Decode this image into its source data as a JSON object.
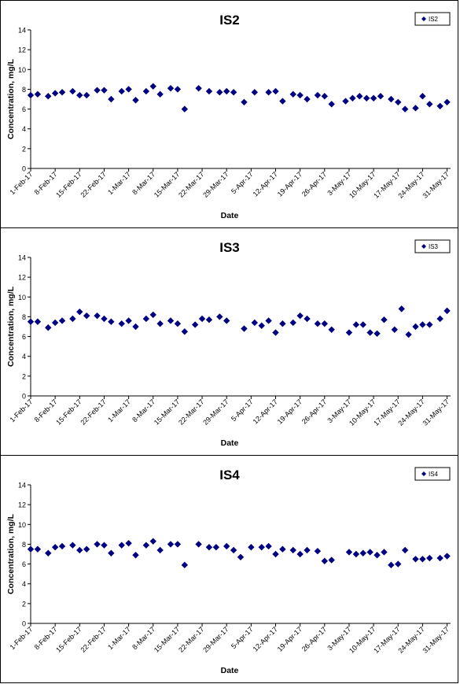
{
  "colors": {
    "marker": "#000080",
    "axis": "#000000"
  },
  "chart_data": [
    {
      "type": "scatter",
      "title": "IS2",
      "xlabel": "Date",
      "ylabel": "Concentration, mg/L",
      "ylim": [
        0,
        14
      ],
      "yticks": [
        "0",
        "2",
        "4",
        "6",
        "8",
        "10",
        "12",
        "14"
      ],
      "xlim": [
        "2017-02-01",
        "2017-06-01"
      ],
      "xtick_labels": [
        "1-Feb-17",
        "8-Feb-17",
        "15-Feb-17",
        "22-Feb-17",
        "1-Mar-17",
        "8-Mar-17",
        "15-Mar-17",
        "22-Mar-17",
        "29-Mar-17",
        "5-Apr-17",
        "12-Apr-17",
        "19-Apr-17",
        "26-Apr-17",
        "3-May-17",
        "10-May-17",
        "17-May-17",
        "24-May-17",
        "31-May-17"
      ],
      "legend": {
        "position": "top-right"
      },
      "series": [
        {
          "name": "IS2",
          "x": [
            "2017-02-01",
            "2017-02-03",
            "2017-02-06",
            "2017-02-08",
            "2017-02-10",
            "2017-02-13",
            "2017-02-15",
            "2017-02-17",
            "2017-02-20",
            "2017-02-22",
            "2017-02-24",
            "2017-02-27",
            "2017-03-01",
            "2017-03-03",
            "2017-03-06",
            "2017-03-08",
            "2017-03-10",
            "2017-03-13",
            "2017-03-15",
            "2017-03-17",
            "2017-03-21",
            "2017-03-24",
            "2017-03-27",
            "2017-03-29",
            "2017-03-31",
            "2017-04-03",
            "2017-04-06",
            "2017-04-10",
            "2017-04-12",
            "2017-04-14",
            "2017-04-17",
            "2017-04-19",
            "2017-04-21",
            "2017-04-24",
            "2017-04-26",
            "2017-04-28",
            "2017-05-02",
            "2017-05-04",
            "2017-05-06",
            "2017-05-08",
            "2017-05-10",
            "2017-05-12",
            "2017-05-15",
            "2017-05-17",
            "2017-05-19",
            "2017-05-22",
            "2017-05-24",
            "2017-05-26",
            "2017-05-29",
            "2017-05-31"
          ],
          "y": [
            7.4,
            7.5,
            7.3,
            7.6,
            7.7,
            7.8,
            7.4,
            7.4,
            7.9,
            7.9,
            7.0,
            7.8,
            8.0,
            6.9,
            7.8,
            8.3,
            7.5,
            8.1,
            8.0,
            6.0,
            8.1,
            7.8,
            7.7,
            7.8,
            7.7,
            6.7,
            7.7,
            7.7,
            7.8,
            6.8,
            7.5,
            7.4,
            7.0,
            7.4,
            7.3,
            6.5,
            6.8,
            7.1,
            7.3,
            7.1,
            7.1,
            7.3,
            7.0,
            6.7,
            6.0,
            6.1,
            7.3,
            6.5,
            6.3,
            6.7
          ]
        }
      ]
    },
    {
      "type": "scatter",
      "title": "IS3",
      "xlabel": "Date",
      "ylabel": "Concentration, mg/L",
      "ylim": [
        0,
        14
      ],
      "yticks": [
        "0",
        "2",
        "4",
        "6",
        "8",
        "10",
        "12",
        "14"
      ],
      "xlim": [
        "2017-02-01",
        "2017-06-01"
      ],
      "xtick_labels": [
        "1-Feb-17",
        "8-Feb-17",
        "15-Feb-17",
        "22-Feb-17",
        "1-Mar-17",
        "8-Mar-17",
        "15-Mar-17",
        "22-Mar-17",
        "29-Mar-17",
        "5-Apr-17",
        "12-Apr-17",
        "19-Apr-17",
        "26-Apr-17",
        "3-May-17",
        "10-May-17",
        "17-May-17",
        "24-May-17",
        "31-May-17"
      ],
      "legend": {
        "position": "top-right"
      },
      "series": [
        {
          "name": "IS3",
          "x": [
            "2017-02-01",
            "2017-02-03",
            "2017-02-06",
            "2017-02-08",
            "2017-02-10",
            "2017-02-13",
            "2017-02-15",
            "2017-02-17",
            "2017-02-20",
            "2017-02-22",
            "2017-02-24",
            "2017-02-27",
            "2017-03-01",
            "2017-03-03",
            "2017-03-06",
            "2017-03-08",
            "2017-03-10",
            "2017-03-13",
            "2017-03-15",
            "2017-03-17",
            "2017-03-20",
            "2017-03-22",
            "2017-03-24",
            "2017-03-27",
            "2017-03-29",
            "2017-04-03",
            "2017-04-06",
            "2017-04-08",
            "2017-04-10",
            "2017-04-12",
            "2017-04-14",
            "2017-04-17",
            "2017-04-19",
            "2017-04-21",
            "2017-04-24",
            "2017-04-26",
            "2017-04-28",
            "2017-05-03",
            "2017-05-05",
            "2017-05-07",
            "2017-05-09",
            "2017-05-11",
            "2017-05-13",
            "2017-05-16",
            "2017-05-18",
            "2017-05-20",
            "2017-05-22",
            "2017-05-24",
            "2017-05-26",
            "2017-05-29",
            "2017-05-31"
          ],
          "y": [
            7.5,
            7.5,
            6.9,
            7.4,
            7.6,
            7.8,
            8.5,
            8.1,
            8.1,
            7.8,
            7.5,
            7.3,
            7.6,
            7.0,
            7.8,
            8.2,
            7.3,
            7.6,
            7.3,
            6.5,
            7.2,
            7.8,
            7.7,
            8.0,
            7.6,
            6.8,
            7.4,
            7.1,
            7.6,
            6.4,
            7.3,
            7.4,
            8.1,
            7.8,
            7.3,
            7.3,
            6.7,
            6.4,
            7.2,
            7.2,
            6.4,
            6.3,
            7.7,
            6.7,
            8.8,
            6.2,
            7.0,
            7.2,
            7.2,
            7.8,
            8.6
          ]
        }
      ]
    },
    {
      "type": "scatter",
      "title": "IS4",
      "xlabel": "Date",
      "ylabel": "Concentration, mg/L",
      "ylim": [
        0,
        14
      ],
      "yticks": [
        "0",
        "2",
        "4",
        "6",
        "8",
        "10",
        "12",
        "14"
      ],
      "xlim": [
        "2017-02-01",
        "2017-06-01"
      ],
      "xtick_labels": [
        "1-Feb-17",
        "8-Feb-17",
        "15-Feb-17",
        "22-Feb-17",
        "1-Mar-17",
        "8-Mar-17",
        "15-Mar-17",
        "22-Mar-17",
        "29-Mar-17",
        "5-Apr-17",
        "12-Apr-17",
        "19-Apr-17",
        "26-Apr-17",
        "3-May-17",
        "10-May-17",
        "17-May-17",
        "24-May-17",
        "31-May-17"
      ],
      "legend": {
        "position": "top-right"
      },
      "series": [
        {
          "name": "IS4",
          "x": [
            "2017-02-01",
            "2017-02-03",
            "2017-02-06",
            "2017-02-08",
            "2017-02-10",
            "2017-02-13",
            "2017-02-15",
            "2017-02-17",
            "2017-02-20",
            "2017-02-22",
            "2017-02-24",
            "2017-02-27",
            "2017-03-01",
            "2017-03-03",
            "2017-03-06",
            "2017-03-08",
            "2017-03-10",
            "2017-03-13",
            "2017-03-15",
            "2017-03-17",
            "2017-03-21",
            "2017-03-24",
            "2017-03-26",
            "2017-03-29",
            "2017-03-31",
            "2017-04-02",
            "2017-04-05",
            "2017-04-08",
            "2017-04-10",
            "2017-04-12",
            "2017-04-14",
            "2017-04-17",
            "2017-04-19",
            "2017-04-21",
            "2017-04-24",
            "2017-04-26",
            "2017-04-28",
            "2017-05-03",
            "2017-05-05",
            "2017-05-07",
            "2017-05-09",
            "2017-05-11",
            "2017-05-13",
            "2017-05-15",
            "2017-05-17",
            "2017-05-19",
            "2017-05-22",
            "2017-05-24",
            "2017-05-26",
            "2017-05-29",
            "2017-05-31"
          ],
          "y": [
            7.5,
            7.5,
            7.1,
            7.7,
            7.8,
            7.9,
            7.4,
            7.5,
            8.0,
            7.9,
            7.1,
            7.9,
            8.1,
            6.9,
            7.9,
            8.3,
            7.4,
            8.0,
            8.0,
            5.9,
            8.0,
            7.7,
            7.7,
            7.8,
            7.4,
            6.7,
            7.7,
            7.7,
            7.8,
            7.0,
            7.5,
            7.4,
            7.0,
            7.4,
            7.3,
            6.3,
            6.4,
            7.2,
            7.0,
            7.1,
            7.2,
            6.9,
            7.2,
            5.9,
            6.0,
            7.4,
            6.5,
            6.5,
            6.6,
            6.6,
            6.8
          ]
        }
      ]
    }
  ]
}
